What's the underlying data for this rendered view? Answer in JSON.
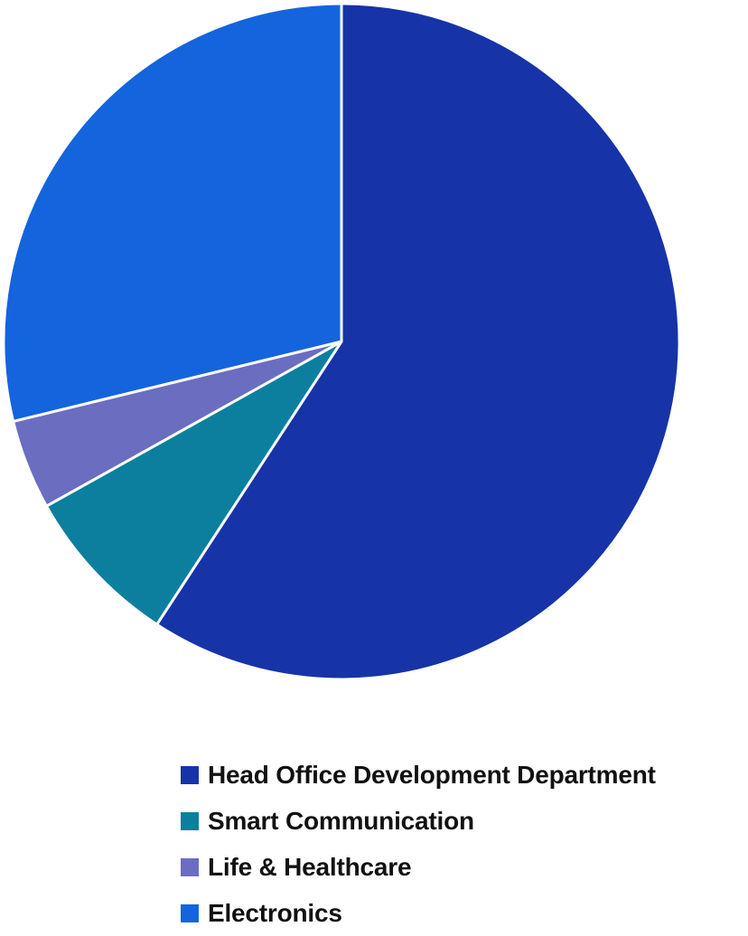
{
  "chart_data": {
    "type": "pie",
    "title": "",
    "start_angle_deg": 0,
    "direction": "clockwise",
    "series": [
      {
        "name": "Head Office Development Department",
        "value": 59.2,
        "color": "#1733A8"
      },
      {
        "name": "Smart Communication",
        "value": 7.7,
        "color": "#0C7F9E"
      },
      {
        "name": "Life & Healthcare",
        "value": 4.3,
        "color": "#6B6DC0"
      },
      {
        "name": "Electronics",
        "value": 28.8,
        "color": "#1464DE"
      }
    ],
    "legend_position": "bottom-right"
  }
}
